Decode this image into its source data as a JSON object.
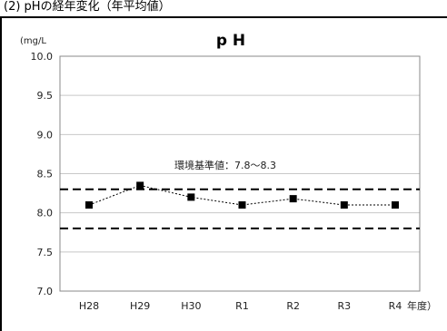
{
  "caption": "(2) pHの経年変化（年平均値）",
  "chart_data": {
    "type": "line",
    "title": "p H",
    "unit_label": "(mg/L",
    "xunit": "年度）",
    "categories": [
      "H28",
      "H29",
      "H30",
      "R1",
      "R2",
      "R3",
      "R4"
    ],
    "series": [
      {
        "values": [
          8.1,
          8.35,
          8.2,
          8.1,
          8.18,
          8.1,
          8.1
        ]
      }
    ],
    "ylim": [
      7.0,
      10.0
    ],
    "yticks": [
      "10.0",
      "9.5",
      "9.0",
      "8.5",
      "8.0",
      "7.5",
      "7.0"
    ],
    "ytick_values": [
      10.0,
      9.5,
      9.0,
      8.5,
      8.0,
      7.5,
      7.0
    ],
    "grid": true,
    "reference_lines": [
      8.3,
      7.8
    ],
    "annotation": "環境基準値：7.8～8.3"
  }
}
